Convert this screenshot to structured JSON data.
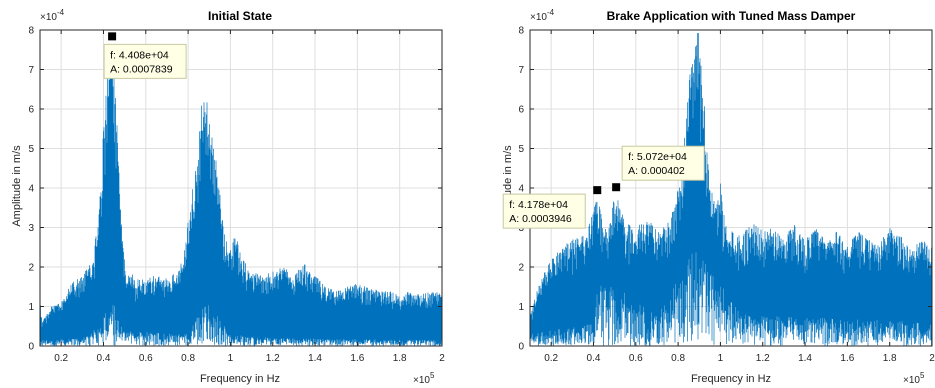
{
  "chart_data": [
    {
      "type": "area",
      "title": "Initial State",
      "xlabel": "Frequency in Hz",
      "ylabel": "Amplitude in m/s",
      "x_exponent_label": "×10",
      "x_exponent": "5",
      "y_exponent_label": "×10",
      "y_exponent": "-4",
      "xlim": [
        10000,
        200000
      ],
      "ylim": [
        0,
        0.0008
      ],
      "xticks": [
        20000,
        40000,
        60000,
        80000,
        100000,
        120000,
        140000,
        160000,
        180000,
        200000
      ],
      "xtick_labels": [
        "0.2",
        "0.4",
        "0.6",
        "0.8",
        "1",
        "1.2",
        "1.4",
        "1.6",
        "1.8",
        "2"
      ],
      "yticks": [
        0,
        0.0001,
        0.0002,
        0.0003,
        0.0004,
        0.0005,
        0.0006,
        0.0007,
        0.0008
      ],
      "ytick_labels": [
        "0",
        "1",
        "2",
        "3",
        "4",
        "5",
        "6",
        "7",
        "8"
      ],
      "grid": true,
      "color": "#0072BD",
      "envelope": {
        "x": [
          10000,
          11000,
          15000,
          20000,
          25000,
          30000,
          35000,
          38000,
          40000,
          42000,
          44080,
          46000,
          48000,
          50000,
          55000,
          60000,
          65000,
          70000,
          75000,
          78000,
          80000,
          82000,
          84000,
          86000,
          88000,
          90000,
          92000,
          94000,
          96000,
          98000,
          100000,
          102000,
          104000,
          106000,
          110000,
          115000,
          120000,
          125000,
          130000,
          135000,
          140000,
          145000,
          150000,
          155000,
          160000,
          165000,
          170000,
          175000,
          180000,
          185000,
          190000,
          195000,
          200000
        ],
        "y": [
          0.00012,
          6e-05,
          0.0001,
          0.00011,
          0.00016,
          0.00018,
          0.00022,
          0.00035,
          0.00055,
          0.0007,
          0.00078,
          0.00062,
          0.00035,
          0.00022,
          0.00017,
          0.00017,
          0.00018,
          0.00017,
          0.00019,
          0.00023,
          0.00032,
          0.0004,
          0.00047,
          0.0006,
          0.00065,
          0.00058,
          0.0005,
          0.00045,
          0.00033,
          0.00027,
          0.00025,
          0.0003,
          0.00025,
          0.00022,
          0.00019,
          0.00018,
          0.00019,
          0.0002,
          0.00018,
          0.00021,
          0.00018,
          0.00015,
          0.00014,
          0.00015,
          0.00016,
          0.00015,
          0.00014,
          0.00014,
          0.00013,
          0.00014,
          0.00013,
          0.00014,
          0.00014
        ]
      },
      "floor": {
        "x": [
          10000,
          30000,
          38000,
          44080,
          50000,
          80000,
          88000,
          100000,
          120000,
          200000
        ],
        "y": [
          1.5e-05,
          2e-05,
          5e-05,
          0.00013,
          4e-05,
          3e-05,
          0.00012,
          3e-05,
          2e-05,
          1.5e-05
        ]
      },
      "annotations": [
        {
          "f": 44080,
          "a": 0.0007839,
          "line1": "f: 4.408e+04",
          "line2": "A: 0.0007839",
          "placement": "below-right"
        }
      ]
    },
    {
      "type": "area",
      "title": "Brake Application with Tuned Mass Damper",
      "xlabel": "Frequency in Hz",
      "ylabel": "Amplitude in m/s",
      "x_exponent_label": "×10",
      "x_exponent": "5",
      "y_exponent_label": "×10",
      "y_exponent": "-4",
      "xlim": [
        10000,
        200000
      ],
      "ylim": [
        0,
        0.0008
      ],
      "xticks": [
        20000,
        40000,
        60000,
        80000,
        100000,
        120000,
        140000,
        160000,
        180000,
        200000
      ],
      "xtick_labels": [
        "0.2",
        "0.4",
        "0.6",
        "0.8",
        "1",
        "1.2",
        "1.4",
        "1.6",
        "1.8",
        "2"
      ],
      "yticks": [
        0,
        0.0001,
        0.0002,
        0.0003,
        0.0004,
        0.0005,
        0.0006,
        0.0007,
        0.0008
      ],
      "ytick_labels": [
        "0",
        "1",
        "2",
        "3",
        "4",
        "5",
        "6",
        "7",
        "8"
      ],
      "grid": true,
      "color": "#0072BD",
      "envelope": {
        "x": [
          10000,
          15000,
          20000,
          25000,
          30000,
          35000,
          40000,
          41780,
          44000,
          47000,
          50720,
          54000,
          58000,
          62000,
          66000,
          70000,
          75000,
          78000,
          80000,
          82000,
          84000,
          86000,
          88000,
          89000,
          90000,
          91000,
          92000,
          94000,
          96000,
          98000,
          100000,
          102000,
          105000,
          110000,
          115000,
          120000,
          125000,
          130000,
          135000,
          140000,
          145000,
          150000,
          155000,
          160000,
          165000,
          170000,
          175000,
          180000,
          185000,
          190000,
          195000,
          200000
        ],
        "y": [
          8e-05,
          0.00017,
          0.00022,
          0.00025,
          0.00027,
          0.00028,
          0.00034,
          0.00039,
          0.00033,
          0.0003,
          0.0004,
          0.00033,
          0.0003,
          0.00031,
          0.00032,
          0.0003,
          0.00031,
          0.00035,
          0.0004,
          0.00048,
          0.0006,
          0.00072,
          0.00075,
          0.0008,
          0.0008,
          0.00074,
          0.00065,
          0.00047,
          0.00041,
          0.00035,
          0.00042,
          0.00032,
          0.0003,
          0.00028,
          0.00032,
          0.00029,
          0.0003,
          0.00028,
          0.00031,
          0.00027,
          0.0003,
          0.00027,
          0.00029,
          0.00026,
          0.00029,
          0.00027,
          0.00026,
          0.0003,
          0.00028,
          0.00025,
          0.00027,
          0.00025
        ]
      },
      "floor": {
        "x": [
          10000,
          40000,
          41780,
          50720,
          70000,
          88000,
          92000,
          110000,
          200000
        ],
        "y": [
          3e-05,
          6e-05,
          0.00016,
          0.00015,
          8e-05,
          0.00025,
          0.00022,
          8e-05,
          6e-05
        ]
      },
      "annotations": [
        {
          "f": 50720,
          "a": 0.000402,
          "line1": "f: 5.072e+04",
          "line2": "A: 0.000402",
          "placement": "above-right"
        },
        {
          "f": 41780,
          "a": 0.0003946,
          "line1": "f: 4.178e+04",
          "line2": "A: 0.0003946",
          "placement": "below-left"
        }
      ]
    }
  ]
}
